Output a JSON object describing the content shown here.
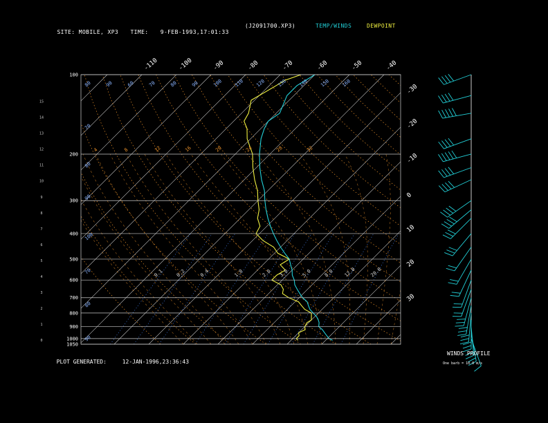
{
  "header": {
    "site_label": "SITE:",
    "site_value": "MOBILE, XP3",
    "time_label": "TIME:",
    "time_value": "9-FEB-1993,17:01:33",
    "file_id": "(J2091700.XP3)",
    "legend_temp": "TEMP/WINDS",
    "legend_dew": "DEWPOINT"
  },
  "footer": {
    "generated_label": "PLOT GENERATED:",
    "generated_value": "12-JAN-1996,23:36:43",
    "winds_profile_label": "WINDS PROFILE",
    "barb_note": "One barb = 10.0 m/s"
  },
  "colors": {
    "temp": "#22d0d8",
    "dewpoint": "#f0f040",
    "isobar": "#c8c8c8",
    "isotherm": "#c8c8c8",
    "dry_adiabat": "#e8902a",
    "mixing_ratio": "#4a8aff",
    "moist_adiabat": "#e8902a"
  },
  "chart_data": {
    "type": "line",
    "title": "",
    "xlabel": "",
    "ylabel": "",
    "pressure_ticks": [
      "100",
      "200",
      "300",
      "400",
      "500",
      "600",
      "700",
      "800",
      "900",
      "1000",
      "1050"
    ],
    "km_ticks": [
      "0",
      "1",
      "2",
      "3",
      "4",
      "5",
      "6",
      "7",
      "8",
      "9",
      "10",
      "11",
      "12",
      "13",
      "14",
      "15"
    ],
    "temp_top_ticks": [
      "-110",
      "-100",
      "-90",
      "-80",
      "-70",
      "-60",
      "-50",
      "-40"
    ],
    "temp_right_ticks": [
      "-30",
      "-20",
      "-10",
      "0",
      "10",
      "20",
      "30"
    ],
    "theta_labels_top": [
      "80",
      "90",
      "60",
      "70",
      "80",
      "90",
      "100",
      "110",
      "120",
      "130",
      "140",
      "150",
      "160"
    ],
    "theta_labels_mid": [
      "70",
      "80",
      "90",
      "100",
      "70",
      "80",
      "90"
    ],
    "moist_labels": [
      "4",
      "8",
      "12",
      "16",
      "20",
      "24",
      "28",
      "32"
    ],
    "mixing_labels": [
      "0.1",
      "0.2",
      "0.4",
      "1.0",
      "2.0",
      "3.0",
      "5.0",
      "8.0",
      "12.0",
      "20.0"
    ],
    "series": [
      {
        "name": "TEMP/WINDS",
        "points": [
          [
            1015,
            22
          ],
          [
            1000,
            20.5
          ],
          [
            975,
            19
          ],
          [
            950,
            17.5
          ],
          [
            925,
            16
          ],
          [
            900,
            14
          ],
          [
            870,
            13
          ],
          [
            850,
            12
          ],
          [
            825,
            10.5
          ],
          [
            800,
            8.5
          ],
          [
            775,
            6.5
          ],
          [
            750,
            5
          ],
          [
            725,
            3.5
          ],
          [
            700,
            1
          ],
          [
            675,
            -1
          ],
          [
            650,
            -3
          ],
          [
            625,
            -5
          ],
          [
            600,
            -6.5
          ],
          [
            575,
            -8.5
          ],
          [
            550,
            -10
          ],
          [
            525,
            -12
          ],
          [
            500,
            -14
          ],
          [
            475,
            -17
          ],
          [
            450,
            -20
          ],
          [
            425,
            -23
          ],
          [
            400,
            -26
          ],
          [
            375,
            -29
          ],
          [
            350,
            -32
          ],
          [
            325,
            -35
          ],
          [
            300,
            -38
          ],
          [
            275,
            -41
          ],
          [
            250,
            -45
          ],
          [
            225,
            -49
          ],
          [
            200,
            -53
          ],
          [
            175,
            -57
          ],
          [
            160,
            -59
          ],
          [
            150,
            -60
          ],
          [
            140,
            -59
          ],
          [
            120,
            -62
          ],
          [
            110,
            -62
          ],
          [
            105,
            -61
          ],
          [
            100,
            -60
          ]
        ]
      },
      {
        "name": "DEWPOINT",
        "points": [
          [
            1015,
            12
          ],
          [
            1000,
            11
          ],
          [
            975,
            11
          ],
          [
            950,
            10
          ],
          [
            925,
            11
          ],
          [
            900,
            10
          ],
          [
            870,
            9.5
          ],
          [
            850,
            10
          ],
          [
            800,
            8
          ],
          [
            775,
            5
          ],
          [
            750,
            3
          ],
          [
            725,
            1
          ],
          [
            700,
            -3
          ],
          [
            675,
            -6
          ],
          [
            650,
            -7
          ],
          [
            625,
            -9
          ],
          [
            600,
            -13
          ],
          [
            575,
            -13
          ],
          [
            550,
            -12
          ],
          [
            525,
            -15
          ],
          [
            500,
            -14
          ],
          [
            475,
            -19
          ],
          [
            450,
            -22
          ],
          [
            425,
            -27
          ],
          [
            400,
            -31
          ],
          [
            375,
            -32
          ],
          [
            350,
            -35
          ],
          [
            325,
            -37
          ],
          [
            300,
            -40
          ],
          [
            275,
            -43
          ],
          [
            250,
            -47
          ],
          [
            225,
            -51
          ],
          [
            200,
            -55
          ],
          [
            175,
            -61
          ],
          [
            160,
            -64
          ],
          [
            150,
            -67
          ],
          [
            140,
            -68
          ],
          [
            125,
            -71
          ],
          [
            110,
            -68
          ],
          [
            105,
            -67
          ],
          [
            100,
            -64
          ]
        ]
      }
    ],
    "winds": [
      {
        "p": 100,
        "dir": 250,
        "spd": 35
      },
      {
        "p": 120,
        "dir": 255,
        "spd": 40
      },
      {
        "p": 140,
        "dir": 260,
        "spd": 45
      },
      {
        "p": 175,
        "dir": 250,
        "spd": 40
      },
      {
        "p": 200,
        "dir": 255,
        "spd": 45
      },
      {
        "p": 225,
        "dir": 250,
        "spd": 40
      },
      {
        "p": 250,
        "dir": 245,
        "spd": 35
      },
      {
        "p": 300,
        "dir": 235,
        "spd": 40
      },
      {
        "p": 325,
        "dir": 230,
        "spd": 38
      },
      {
        "p": 350,
        "dir": 225,
        "spd": 32
      },
      {
        "p": 400,
        "dir": 220,
        "spd": 25
      },
      {
        "p": 450,
        "dir": 215,
        "spd": 20
      },
      {
        "p": 500,
        "dir": 210,
        "spd": 18
      },
      {
        "p": 550,
        "dir": 205,
        "spd": 18
      },
      {
        "p": 600,
        "dir": 200,
        "spd": 20
      },
      {
        "p": 650,
        "dir": 200,
        "spd": 22
      },
      {
        "p": 700,
        "dir": 195,
        "spd": 25
      },
      {
        "p": 750,
        "dir": 190,
        "spd": 28
      },
      {
        "p": 800,
        "dir": 185,
        "spd": 30
      },
      {
        "p": 850,
        "dir": 180,
        "spd": 25
      },
      {
        "p": 900,
        "dir": 175,
        "spd": 20
      },
      {
        "p": 950,
        "dir": 170,
        "spd": 15
      },
      {
        "p": 1000,
        "dir": 160,
        "spd": 10
      }
    ]
  }
}
